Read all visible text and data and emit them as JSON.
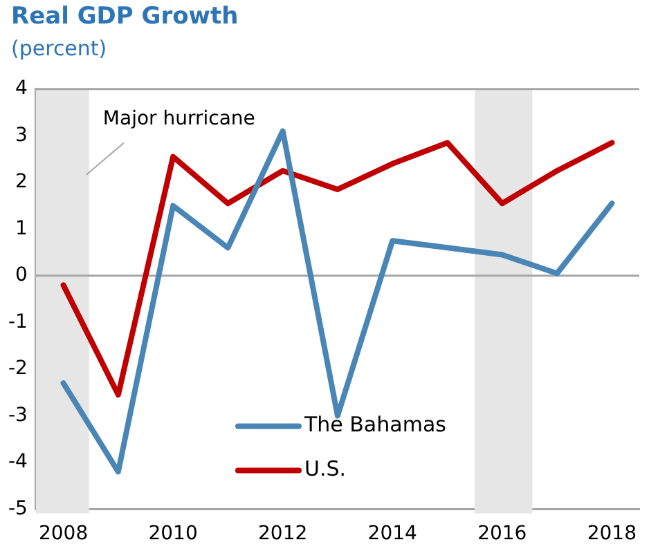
{
  "chart_data": {
    "type": "line",
    "title": "Real GDP Growth",
    "subtitle": "(percent)",
    "x": [
      2008,
      2009,
      2010,
      2011,
      2012,
      2013,
      2014,
      2015,
      2016,
      2017,
      2018
    ],
    "series": [
      {
        "name": "The Bahamas",
        "color": "#4a86b5",
        "values": [
          -2.3,
          -4.2,
          1.5,
          0.6,
          3.1,
          -3.0,
          0.75,
          0.6,
          0.45,
          0.05,
          1.55
        ]
      },
      {
        "name": "U.S.",
        "color": "#c00000",
        "values": [
          -0.2,
          -2.55,
          2.55,
          1.55,
          2.25,
          1.85,
          2.4,
          2.85,
          1.55,
          2.25,
          2.85
        ]
      }
    ],
    "xlim": [
      2007.5,
      2018.5
    ],
    "xticks": [
      2008,
      2010,
      2012,
      2014,
      2016,
      2018
    ],
    "ylim": [
      -5,
      4
    ],
    "yticks": [
      -5,
      -4,
      -3,
      -2,
      -1,
      0,
      1,
      2,
      3,
      4
    ],
    "bands": [
      {
        "axis": "x",
        "from": 2007.5,
        "to": 2008.47,
        "label": "Major hurricane",
        "color": "#e6e6e6"
      },
      {
        "axis": "x",
        "from": 2015.5,
        "to": 2016.55,
        "color": "#e6e6e6"
      }
    ],
    "ref_lines": [
      {
        "axis": "y",
        "value": 0,
        "color": "#a6a6a6"
      }
    ],
    "grid": false,
    "legend": "bottom",
    "marker": "none",
    "line_style": "solid"
  }
}
